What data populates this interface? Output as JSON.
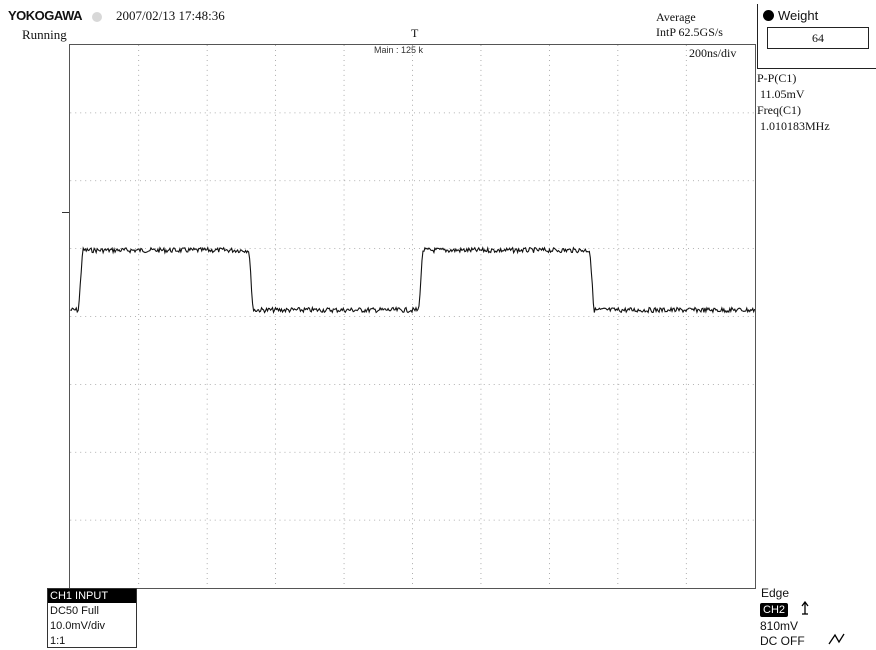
{
  "header": {
    "brand": "YOKOGAWA",
    "datetime": "2007/02/13 17:48:36",
    "status": "Running",
    "trigger_position_marker": "T",
    "zoom_info": "Main : 125 k"
  },
  "acquisition": {
    "mode": "Average",
    "rate": "IntP  62.5GS/s",
    "timebase": "200ns/div"
  },
  "weight_panel": {
    "label": "Weight",
    "value": "64"
  },
  "measurements": [
    {
      "label": "P-P(C1)",
      "value": "11.05mV"
    },
    {
      "label": "Freq(C1)",
      "value": "1.010183MHz"
    }
  ],
  "channel": {
    "title": "CH1 INPUT",
    "coupling": "DC50 Full",
    "scale": "10.0mV/div",
    "probe": "1:1"
  },
  "trigger": {
    "type": "Edge",
    "source": "CH2",
    "slope_icon": "rising-edge-icon",
    "level": "810mV",
    "coupling": "DC OFF",
    "mode_icon": "trigger-mode-icon"
  },
  "grid": {
    "divisions_x": 10,
    "divisions_y": 8
  },
  "waveform": {
    "levels": {
      "high": 1.0,
      "low": 0.0
    },
    "edges_div": [
      0.18,
      2.67,
      5.15,
      7.65
    ],
    "period_div": 4.95
  },
  "colors": {
    "background": "#ffffff",
    "grid": "#9a9a9a",
    "trace": "#111111"
  }
}
